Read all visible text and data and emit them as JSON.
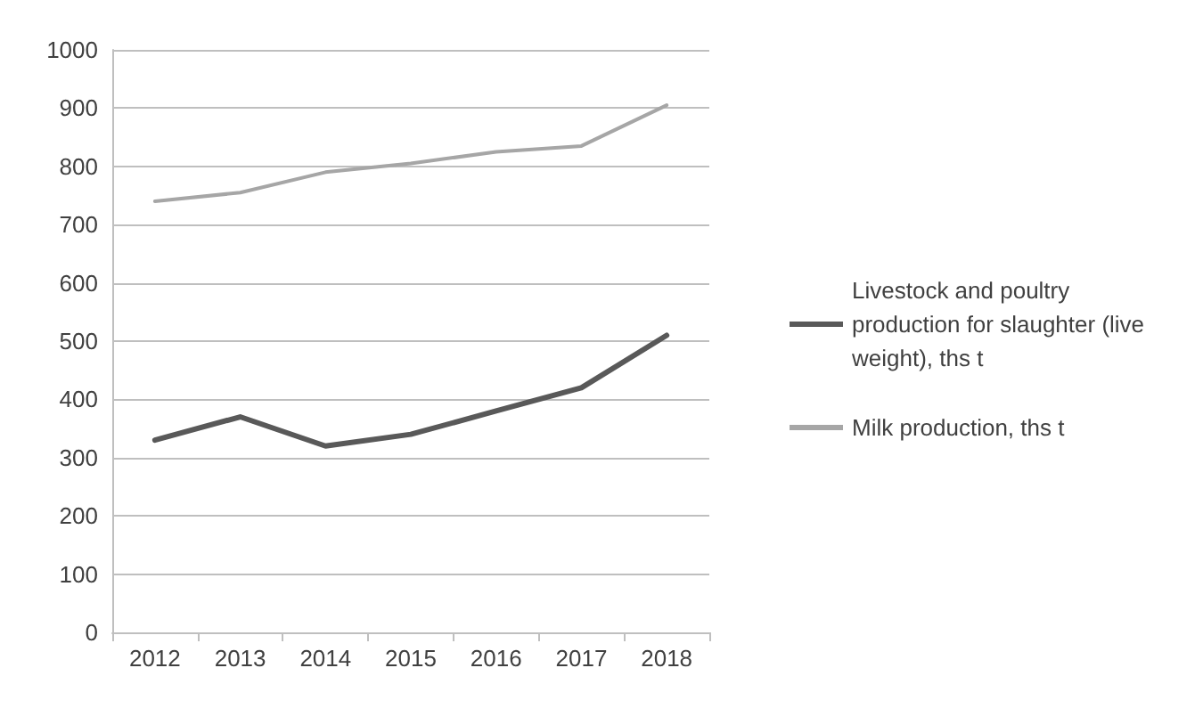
{
  "chart_data": {
    "type": "line",
    "categories": [
      "2012",
      "2013",
      "2014",
      "2015",
      "2016",
      "2017",
      "2018"
    ],
    "series": [
      {
        "name": "Livestock and poultry production for slaughter (live weight), ths t",
        "color": "#595959",
        "values": [
          330,
          370,
          320,
          340,
          380,
          420,
          510
        ]
      },
      {
        "name": "Milk production, ths t",
        "color": "#a6a6a6",
        "values": [
          740,
          755,
          790,
          805,
          825,
          835,
          905
        ]
      }
    ],
    "ylim": [
      0,
      1000
    ],
    "yticks": [
      0,
      100,
      200,
      300,
      400,
      500,
      600,
      700,
      800,
      900,
      1000
    ],
    "grid": "y",
    "legend": "right",
    "marker": "none",
    "line_style": "solid"
  }
}
